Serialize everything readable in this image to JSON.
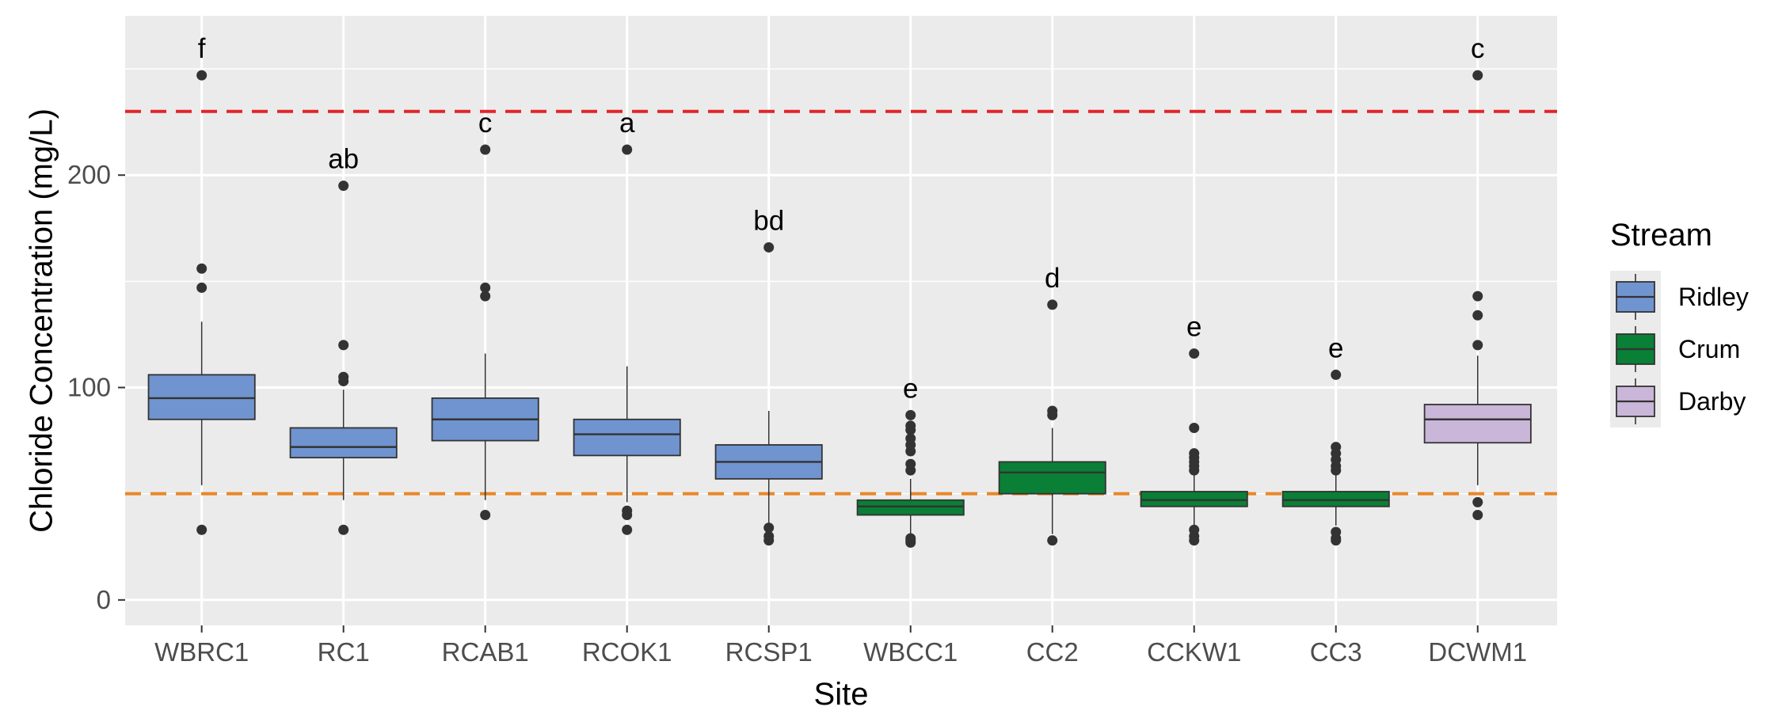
{
  "chart_data": {
    "type": "box",
    "xlabel": "Site",
    "ylabel": "Chloride Concentration (mg/L)",
    "ylim": [
      -12,
      275
    ],
    "yticks": [
      0,
      100,
      200
    ],
    "y_minor_ticks": [
      50,
      150,
      250
    ],
    "grid": true,
    "legend": {
      "title": "Stream",
      "placement": "right",
      "entries": [
        {
          "name": "Ridley",
          "color": "#7094d0"
        },
        {
          "name": "Crum",
          "color": "#0a7f36"
        },
        {
          "name": "Darby",
          "color": "#c9b6d8"
        }
      ]
    },
    "reference_lines": [
      {
        "value": 230,
        "color": "#e0262b",
        "style": "dashed"
      },
      {
        "value": 50,
        "color": "#e98627",
        "style": "dashed"
      }
    ],
    "categories": [
      "WBRC1",
      "RC1",
      "RCAB1",
      "RCOK1",
      "RCSP1",
      "WBCC1",
      "CC2",
      "CCKW1",
      "CC3",
      "DCWM1"
    ],
    "boxes": [
      {
        "site": "WBRC1",
        "stream": "Ridley",
        "whisker_low": 54,
        "q1": 85,
        "median": 95,
        "q3": 106,
        "whisker_high": 131,
        "outliers": [
          33,
          147,
          156,
          247
        ],
        "letter": "f"
      },
      {
        "site": "RC1",
        "stream": "Ridley",
        "whisker_low": 47,
        "q1": 67,
        "median": 72,
        "q3": 81,
        "whisker_high": 99,
        "outliers": [
          33,
          103,
          105,
          120,
          195
        ],
        "letter": "ab"
      },
      {
        "site": "RCAB1",
        "stream": "Ridley",
        "whisker_low": 47,
        "q1": 75,
        "median": 85,
        "q3": 95,
        "whisker_high": 116,
        "outliers": [
          40,
          143,
          147,
          212
        ],
        "letter": "c"
      },
      {
        "site": "RCOK1",
        "stream": "Ridley",
        "whisker_low": 46,
        "q1": 68,
        "median": 78,
        "q3": 85,
        "whisker_high": 110,
        "outliers": [
          33,
          40,
          42,
          212
        ],
        "letter": "a"
      },
      {
        "site": "RCSP1",
        "stream": "Ridley",
        "whisker_low": 36,
        "q1": 57,
        "median": 65,
        "q3": 73,
        "whisker_high": 89,
        "outliers": [
          28,
          30,
          34,
          166
        ],
        "letter": "bd"
      },
      {
        "site": "WBCC1",
        "stream": "Crum",
        "whisker_low": 31,
        "q1": 40,
        "median": 44,
        "q3": 47,
        "whisker_high": 57,
        "outliers": [
          27,
          28,
          29,
          61,
          64,
          70,
          73,
          76,
          80,
          82,
          87
        ],
        "letter": "e"
      },
      {
        "site": "CC2",
        "stream": "Crum",
        "whisker_low": 31,
        "q1": 50,
        "median": 60,
        "q3": 65,
        "whisker_high": 81,
        "outliers": [
          28,
          87,
          89,
          139
        ],
        "letter": "d"
      },
      {
        "site": "CCKW1",
        "stream": "Crum",
        "whisker_low": 35,
        "q1": 44,
        "median": 47,
        "q3": 51,
        "whisker_high": 59,
        "outliers": [
          28,
          30,
          33,
          61,
          63,
          65,
          67,
          69,
          81,
          116
        ],
        "letter": "e"
      },
      {
        "site": "CC3",
        "stream": "Crum",
        "whisker_low": 35,
        "q1": 44,
        "median": 47,
        "q3": 51,
        "whisker_high": 59,
        "outliers": [
          28,
          29,
          32,
          61,
          63,
          66,
          69,
          72,
          106
        ],
        "letter": "e"
      },
      {
        "site": "DCWM1",
        "stream": "Darby",
        "whisker_low": 54,
        "q1": 74,
        "median": 85,
        "q3": 92,
        "whisker_high": 115,
        "outliers": [
          40,
          46,
          120,
          134,
          143,
          247
        ],
        "letter": "c"
      }
    ]
  }
}
